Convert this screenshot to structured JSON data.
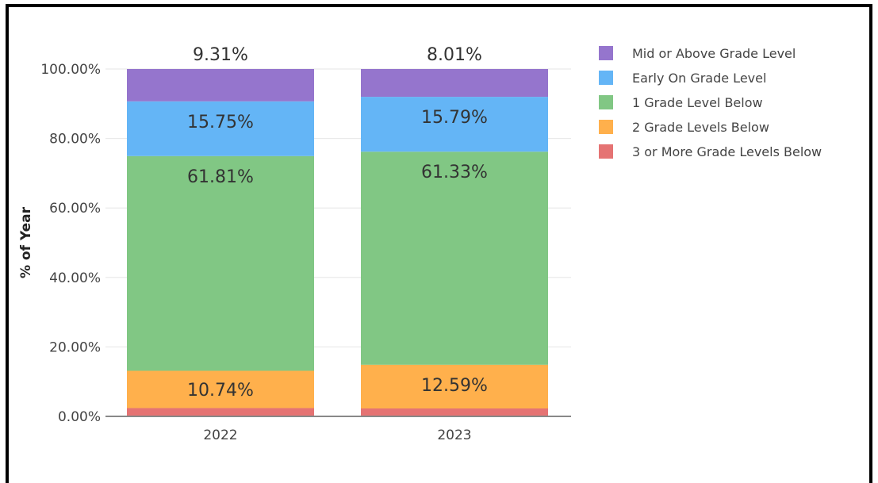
{
  "chart_data": {
    "type": "bar",
    "stacked": true,
    "categories": [
      "2022",
      "2023"
    ],
    "ylabel": "% of Year",
    "xlabel": "",
    "ylim": [
      0,
      100
    ],
    "yticks": [
      "0.00%",
      "20.00%",
      "40.00%",
      "60.00%",
      "80.00%",
      "100.00%"
    ],
    "grid": true,
    "legend_position": "top-right",
    "series": [
      {
        "name": "3 or More Grade Levels Below",
        "color": "#e57373",
        "values": [
          2.39,
          2.28
        ],
        "labels": [
          "",
          ""
        ]
      },
      {
        "name": "2 Grade Levels Below",
        "color": "#ffb04c",
        "values": [
          10.74,
          12.59
        ],
        "labels": [
          "10.74%",
          "12.59%"
        ]
      },
      {
        "name": "1 Grade Level Below",
        "color": "#81c784",
        "values": [
          61.81,
          61.33
        ],
        "labels": [
          "61.81%",
          "61.33%"
        ]
      },
      {
        "name": "Early On Grade Level",
        "color": "#64b5f6",
        "values": [
          15.75,
          15.79
        ],
        "labels": [
          "15.75%",
          "15.79%"
        ]
      },
      {
        "name": "Mid or Above Grade Level",
        "color": "#9575cd",
        "values": [
          9.31,
          8.01
        ],
        "labels": [
          "9.31%",
          "8.01%"
        ]
      }
    ],
    "legend_order": [
      "Mid or Above Grade Level",
      "Early On Grade Level",
      "1 Grade Level Below",
      "2 Grade Levels Below",
      "3 or More Grade Levels Below"
    ]
  }
}
